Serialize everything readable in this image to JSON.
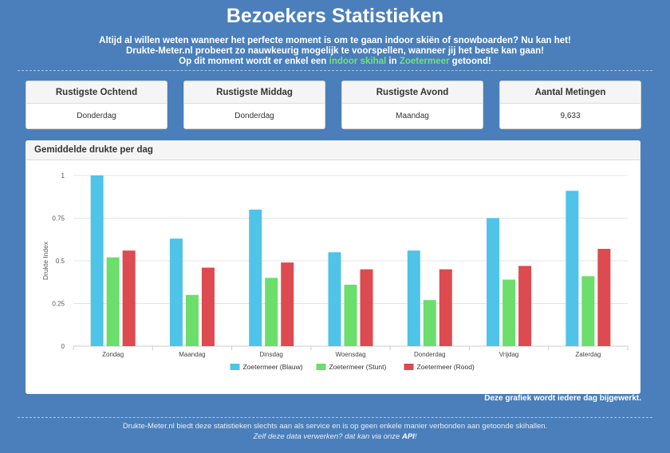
{
  "page": {
    "title": "Bezoekers Statistieken"
  },
  "intro": {
    "line1": "Altijd al willen weten wanneer het perfecte moment is om te gaan indoor skiën of snowboarden? Nu kan het!",
    "line2": "Drukte-Meter.nl probeert zo nauwkeurig mogelijk te voorspellen, wanneer jij het beste kan gaan!",
    "line3_a": "Op dit moment wordt er enkel een ",
    "line3_link1": "indoor skihal",
    "line3_b": " in ",
    "line3_link2": "Zoetermeer",
    "line3_c": " getoond!"
  },
  "stats": [
    {
      "label": "Rustigste Ochtend",
      "value": "Donderdag"
    },
    {
      "label": "Rustigste Middag",
      "value": "Donderdag"
    },
    {
      "label": "Rustigste Avond",
      "value": "Maandag"
    },
    {
      "label": "Aantal Metingen",
      "value": "9,633"
    }
  ],
  "chart_panel": {
    "title": "Gemiddelde drukte per dag"
  },
  "chart_data": {
    "type": "bar",
    "title": "",
    "xlabel": "",
    "ylabel": "Drukte Index",
    "ylim": [
      0,
      1
    ],
    "yticks": [
      "0",
      "0.25",
      "0.5",
      "0.75",
      "1"
    ],
    "categories": [
      "Zondag",
      "Maandag",
      "Dinsdag",
      "Woensdag",
      "Donderdag",
      "Vrijdag",
      "Zaterdag"
    ],
    "grid": true,
    "legend_position": "bottom",
    "series": [
      {
        "name": "Zoetermeer (Blauw)",
        "color": "#4fc3e8",
        "values": [
          1.0,
          0.63,
          0.8,
          0.55,
          0.56,
          0.75,
          0.91
        ]
      },
      {
        "name": "Zoetermeer (Stunt)",
        "color": "#6bde6b",
        "values": [
          0.52,
          0.3,
          0.4,
          0.36,
          0.27,
          0.39,
          0.41
        ]
      },
      {
        "name": "Zoetermeer (Rood)",
        "color": "#dd4a4f",
        "values": [
          0.56,
          0.46,
          0.49,
          0.45,
          0.45,
          0.47,
          0.57
        ]
      }
    ]
  },
  "chart_note": "Deze grafiek wordt iedere dag bijgewerkt.",
  "footer": {
    "line1": "Drukte-Meter.nl biedt deze statistieken slechts aan als service en is op geen enkele manier verbonden aan getoonde skihallen.",
    "line2_a": "Zelf deze data verwerken? dat kan via onze ",
    "line2_link": "API",
    "line2_b": "!"
  }
}
